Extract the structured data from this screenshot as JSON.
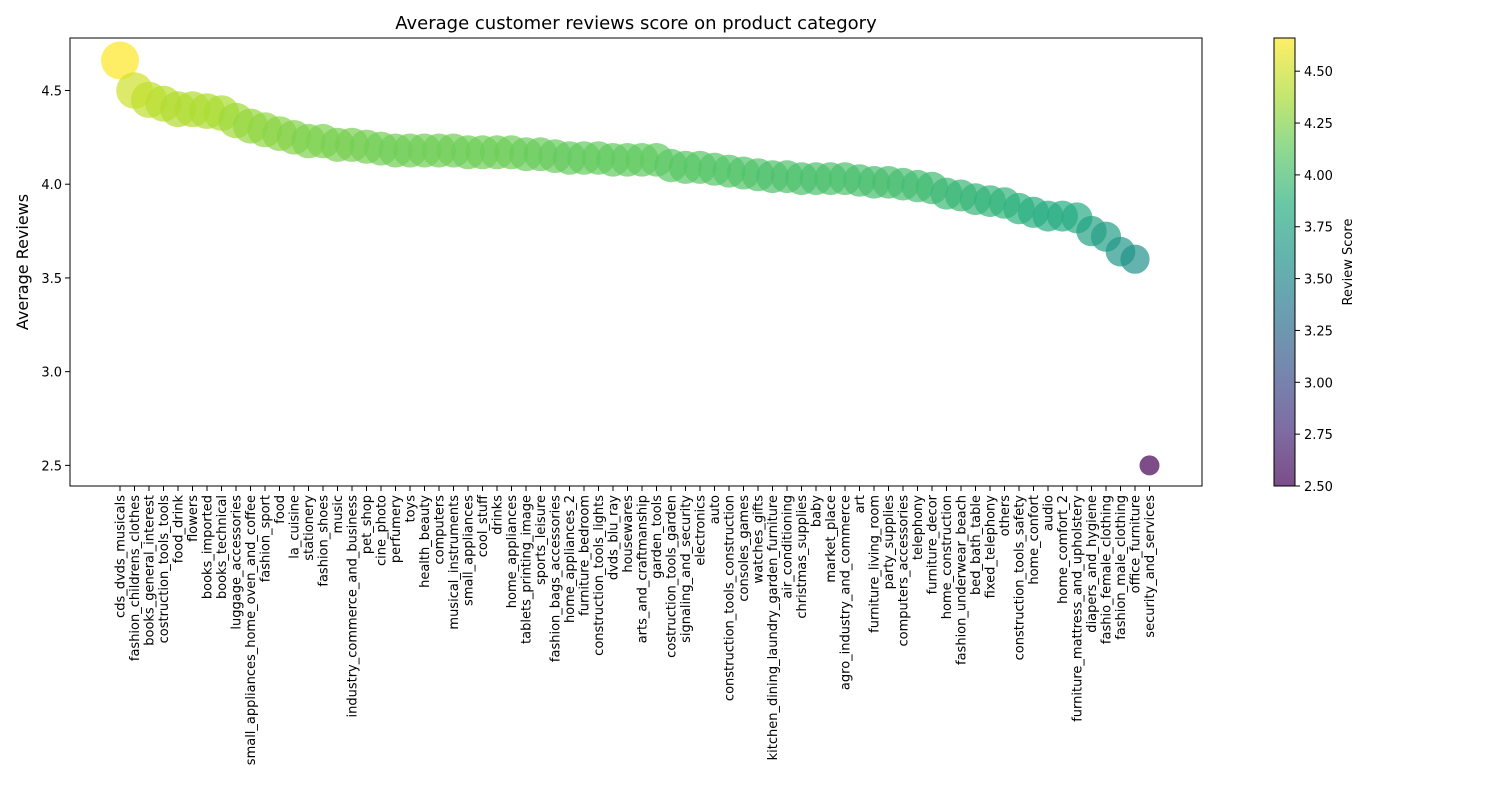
{
  "chart_data": {
    "type": "scatter",
    "title": "Average customer reviews score on product category",
    "ylabel": "Average Reviews",
    "xlabel": "",
    "colorbar_label": "Review Score",
    "colormap": "viridis",
    "marker_alpha": 0.7,
    "ylim": [
      2.39,
      4.78
    ],
    "yticks": [
      2.5,
      3.0,
      3.5,
      4.0,
      4.5
    ],
    "colorbar_range": [
      2.5,
      4.66
    ],
    "colorbar_ticks": [
      2.5,
      2.75,
      3.0,
      3.25,
      3.5,
      3.75,
      4.0,
      4.25,
      4.5
    ],
    "categories": [
      "cds_dvds_musicals",
      "fashion_childrens_clothes",
      "books_general_interest",
      "costruction_tools_tools",
      "food_drink",
      "flowers",
      "books_imported",
      "books_technical",
      "luggage_accessories",
      "small_appliances_home_oven_and_coffee",
      "fashion_sport",
      "food",
      "la_cuisine",
      "stationery",
      "fashion_shoes",
      "music",
      "industry_commerce_and_business",
      "pet_shop",
      "cine_photo",
      "perfumery",
      "toys",
      "health_beauty",
      "computers",
      "musical_instruments",
      "small_appliances",
      "cool_stuff",
      "drinks",
      "home_appliances",
      "tablets_printing_image",
      "sports_leisure",
      "fashion_bags_accessories",
      "home_appliances_2",
      "furniture_bedroom",
      "construction_tools_lights",
      "dvds_blu_ray",
      "housewares",
      "arts_and_craftmanship",
      "garden_tools",
      "costruction_tools_garden",
      "signaling_and_security",
      "electronics",
      "auto",
      "construction_tools_construction",
      "consoles_games",
      "watches_gifts",
      "kitchen_dining_laundry_garden_furniture",
      "air_conditioning",
      "christmas_supplies",
      "baby",
      "market_place",
      "agro_industry_and_commerce",
      "art",
      "furniture_living_room",
      "party_supplies",
      "computers_accessories",
      "telephony",
      "furniture_decor",
      "home_construction",
      "fashion_underwear_beach",
      "bed_bath_table",
      "fixed_telephony",
      "others",
      "construction_tools_safety",
      "home_confort",
      "audio",
      "home_comfort_2",
      "furniture_mattress_and_upholstery",
      "diapers_and_hygiene",
      "fashio_female_clothing",
      "fashion_male_clothing",
      "office_furniture",
      "security_and_services"
    ],
    "values": [
      4.66,
      4.5,
      4.45,
      4.43,
      4.4,
      4.4,
      4.39,
      4.38,
      4.34,
      4.31,
      4.29,
      4.27,
      4.25,
      4.23,
      4.23,
      4.21,
      4.21,
      4.2,
      4.19,
      4.18,
      4.18,
      4.18,
      4.18,
      4.18,
      4.17,
      4.17,
      4.17,
      4.17,
      4.16,
      4.16,
      4.15,
      4.14,
      4.14,
      4.14,
      4.13,
      4.13,
      4.13,
      4.13,
      4.1,
      4.09,
      4.09,
      4.08,
      4.07,
      4.06,
      4.05,
      4.04,
      4.04,
      4.03,
      4.03,
      4.03,
      4.03,
      4.02,
      4.01,
      4.01,
      4.0,
      3.99,
      3.98,
      3.95,
      3.94,
      3.92,
      3.91,
      3.9,
      3.87,
      3.85,
      3.83,
      3.83,
      3.82,
      3.75,
      3.72,
      3.64,
      3.6,
      2.5
    ]
  }
}
